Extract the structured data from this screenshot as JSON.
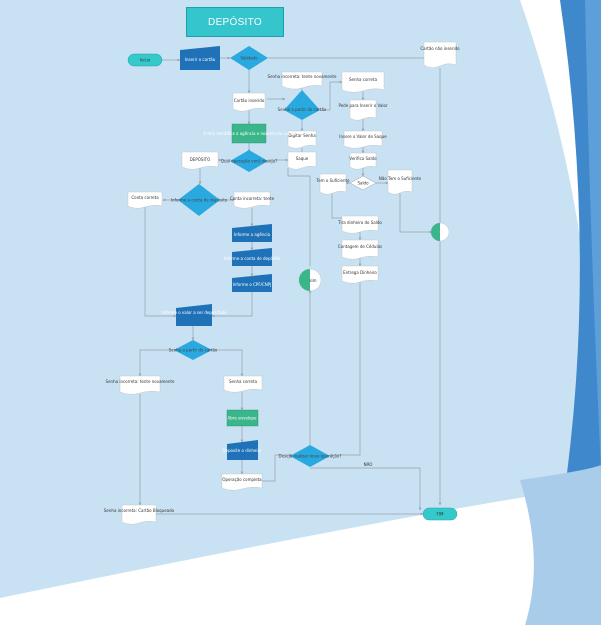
{
  "title": "DEPÓSITO",
  "colors": {
    "canvas": "#c8e2f3",
    "stripe_dark": "#3f88cc",
    "stripe_light": "#a9cceb",
    "title_fill": "#34c6cc",
    "terminator": "#35c9c9",
    "process_blue": "#1f72b8",
    "decision": "#29a9e0",
    "process_green": "#3bb58a",
    "document": "#ffffff",
    "edge": "#9aa0a8"
  },
  "nodes": {
    "inicio": "Início",
    "inserir_cartao": "Inserir o cartão",
    "validado": "Validado",
    "cartao_nao_inserido": "Cartão não inserido",
    "senha_incorreta_top": "Senha incorreta: tente novamente",
    "senha_correta_top": "Senha correta",
    "cartao_inserido": "Cartão inserido",
    "senha_decisao": "Senha a partir do cartão",
    "pede_valor": "Pede para Inserir o Valor",
    "digitar_senha": "Digitar Senha",
    "tela_identificacao": "A tela identifica a agência e número da conta",
    "insere_valor_saque": "Insere o Valor de Saque",
    "deposito_doc": "DEPÓSITO",
    "qual_operacao": "Qual operação você deseja?",
    "saque": "Saque",
    "verifica_saldo": "Verifica Saldo",
    "tem_suficiente": "Tem o Suficiente",
    "saldo": "Saldo",
    "nao_tem_suficiente": "Não Tem o Suficiente",
    "conta_correta": "Conta correta",
    "informe_conta": "Informe a conta de depósito",
    "conta_incorreta": "Conta incorreta: tente",
    "tira_dinheiro": "Tira dinheiro do Saldo",
    "contagem_cedulas": "Contagem de Cédulas",
    "informe_agencia": "Informe a agência",
    "entrega_dinheiro": "Entrega Dinheiro",
    "informe_conta_deposito": "Informe a conta de depósito",
    "informe_cpf": "Informe o CPF/CNPJ",
    "sim": "sim",
    "informe_valor": "Informe o valor a ser depositado",
    "senha_decisao_2": "Senha a partir do cartão",
    "senha_incorreta_mid": "Senha incorreta: tente novamente",
    "senha_correta_mid": "Senha correta",
    "abre_envelope": "Abre envelope",
    "deposite_dinheiro": "Deposite o dinheiro",
    "nova_operacao": "Deseja realizar nova operação?",
    "nao": "NÃO",
    "operacao_completa": "Operação completa",
    "senha_incorreta_bloq": "Senha incorreta: Cartão Bloqueado",
    "fim": "FIM"
  }
}
